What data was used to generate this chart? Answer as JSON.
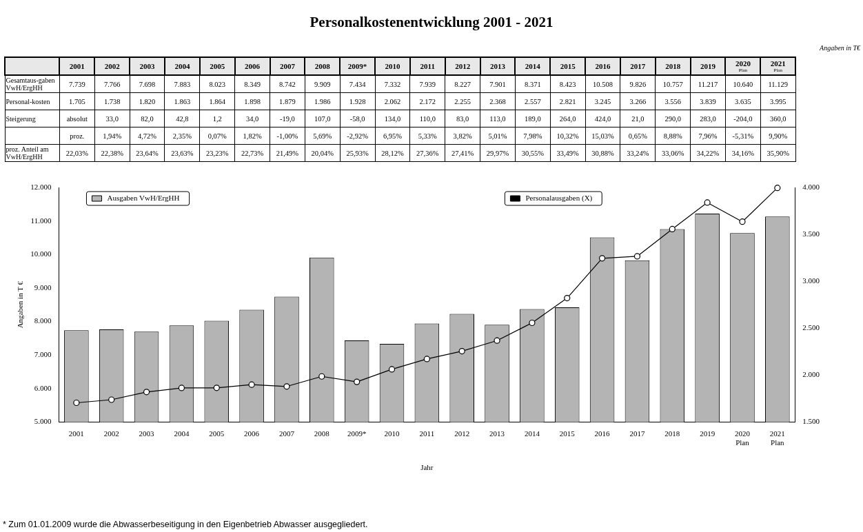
{
  "chart_data": {
    "type": "bar",
    "title": "Personalkostenentwicklung 2001 - 2021",
    "categories": [
      "2001",
      "2002",
      "2003",
      "2004",
      "2005",
      "2006",
      "2007",
      "2008",
      "2009*",
      "2010",
      "2011",
      "2012",
      "2013",
      "2014",
      "2015",
      "2016",
      "2017",
      "2018",
      "2019",
      "2020 Plan",
      "2021 Plan"
    ],
    "series": [
      {
        "name": "Ausgaben VwH/ErgHH",
        "color": "#b4b4b4",
        "values": [
          7739,
          7766,
          7698,
          7883,
          8023,
          8349,
          8742,
          9909,
          7434,
          7332,
          7939,
          8227,
          7901,
          8371,
          8423,
          10508,
          9826,
          10757,
          11217,
          10640,
          11129
        ],
        "value_labels": [
          "7.739",
          "7.766",
          "7.698",
          "7.883",
          "8.023",
          "8.349",
          "8.742",
          "9.909",
          "7.434",
          "7.332",
          "7.939",
          "8.227",
          "7.901",
          "8.371",
          "8.423",
          "10.508",
          "9.826",
          "10.757",
          "11.217",
          "10.640",
          "11.129"
        ]
      },
      {
        "name": "Personalausgaben (X)",
        "type": "line",
        "axis": "y2",
        "color": "#000000",
        "values": [
          1705,
          1738,
          1820,
          1863,
          1864,
          1898,
          1879,
          1986,
          1928,
          2062,
          2172,
          2255,
          2368,
          2557,
          2821,
          3245,
          3266,
          3556,
          3839,
          3635,
          3995
        ],
        "value_labels": [
          "1.705",
          "1.738",
          "1.820",
          "1.863",
          "1.864",
          "1.898",
          "1.879",
          "1.986",
          "1.928",
          "2.062",
          "2.172",
          "2.255",
          "2.368",
          "2.557",
          "2.821",
          "3.245",
          "3.266",
          "3.556",
          "3.839",
          "3.635",
          "3.995"
        ]
      }
    ],
    "ylim": [
      5000,
      12000
    ],
    "yticks": [
      {
        "value": 5000,
        "label": "5.000"
      },
      {
        "value": 6000,
        "label": "6.000"
      },
      {
        "value": 7000,
        "label": "7.000"
      },
      {
        "value": 8000,
        "label": "8.000"
      },
      {
        "value": 9000,
        "label": "9.000"
      },
      {
        "value": 10000,
        "label": "10.000"
      },
      {
        "value": 11000,
        "label": "11.000"
      },
      {
        "value": 12000,
        "label": "12.000"
      }
    ],
    "y2lim": [
      1500,
      4000
    ],
    "y2ticks": [
      {
        "value": 1500,
        "label": "1.500"
      },
      {
        "value": 2000,
        "label": "2.000"
      },
      {
        "value": 2500,
        "label": "2.500"
      },
      {
        "value": 3000,
        "label": "3.000"
      },
      {
        "value": 3500,
        "label": "3.500"
      },
      {
        "value": 4000,
        "label": "4.000"
      }
    ],
    "xlabel": "Jahr",
    "ylabel": "Angaben in T €",
    "grid": false,
    "legend": "top",
    "marker": "circle",
    "line_style": "solid",
    "annotations": [
      "Angaben in T€",
      "Gesamtaus-gaben VwH/ErgHH",
      "Personal-kosten",
      "Steigerung",
      "absolut",
      "33,0",
      "82,0",
      "42,8",
      "1,2",
      "34,0",
      "-19,0",
      "107,0",
      "-58,0",
      "134,0",
      "110,0",
      "83,0",
      "113,0",
      "189,0",
      "264,0",
      "424,0",
      "21,0",
      "290,0",
      "283,0",
      "-204,0",
      "360,0",
      "proz.",
      "1,94%",
      "4,72%",
      "2,35%",
      "0,07%",
      "1,82%",
      "-1,00%",
      "5,69%",
      "-2,92%",
      "6,95%",
      "5,33%",
      "3,82%",
      "5,01%",
      "7,98%",
      "10,32%",
      "15,03%",
      "0,65%",
      "8,88%",
      "7,96%",
      "-5,31%",
      "9,90%",
      "proz. Anteil am VwH/ErgHH",
      "22,03%",
      "22,38%",
      "23,64%",
      "23,63%",
      "23,23%",
      "22,73%",
      "21,49%",
      "20,04%",
      "25,93%",
      "28,12%",
      "27,36%",
      "27,41%",
      "29,97%",
      "30,55%",
      "33,49%",
      "30,88%",
      "33,24%",
      "33,06%",
      "34,22%",
      "34,16%",
      "35,90%",
      "* Zum 01.01.2009 wurde die Abwasserbeseitigung in den Eigenbetrieb Abwasser ausgegliedert."
    ]
  }
}
